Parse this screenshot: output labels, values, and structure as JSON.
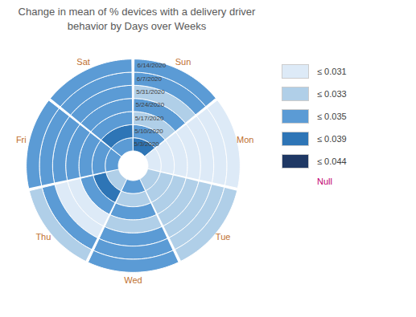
{
  "chart_data": {
    "type": "radial_heatmap",
    "title": "Change in mean of % devices with a delivery driver\nbehavior by Days over Weeks",
    "categories": [
      "Sun",
      "Mon",
      "Tue",
      "Wed",
      "Thu",
      "Fri",
      "Sat"
    ],
    "weeks": [
      "5/3/2020",
      "5/10/2020",
      "5/17/2020",
      "5/24/2020",
      "5/31/2020",
      "6/7/2020",
      "6/14/2020"
    ],
    "cells": [
      [
        "≤ 0.039",
        "≤ 0.035",
        "≤ 0.033",
        "≤ 0.035",
        "≤ 0.033",
        "≤ 0.035",
        "≤ 0.035"
      ],
      [
        "≤ 0.031",
        "≤ 0.031",
        "≤ 0.031",
        "≤ 0.031",
        "≤ 0.031",
        "≤ 0.031",
        "≤ 0.031"
      ],
      [
        "≤ 0.033",
        "≤ 0.033",
        "≤ 0.033",
        "≤ 0.033",
        "≤ 0.033",
        "≤ 0.033",
        "≤ 0.033"
      ],
      [
        "≤ 0.035",
        "≤ 0.033",
        "≤ 0.035",
        "≤ 0.033",
        "≤ 0.035",
        "≤ 0.035",
        "≤ 0.035"
      ],
      [
        "≤ 0.033",
        "≤ 0.039",
        "≤ 0.035",
        "≤ 0.031",
        "≤ 0.031",
        "≤ 0.035",
        "≤ 0.033"
      ],
      [
        "≤ 0.035",
        "≤ 0.035",
        "≤ 0.035",
        "≤ 0.035",
        "≤ 0.035",
        "≤ 0.035",
        "≤ 0.035"
      ],
      [
        "≤ 0.035",
        "≤ 0.039",
        "≤ 0.035",
        "≤ 0.035",
        "≤ 0.035",
        "≤ 0.035",
        "≤ 0.035"
      ]
    ],
    "bins": [
      {
        "label": "≤ 0.031",
        "color": "#ddeaf7"
      },
      {
        "label": "≤ 0.033",
        "color": "#b0cfe8"
      },
      {
        "label": "≤ 0.035",
        "color": "#5b9bd5"
      },
      {
        "label": "≤ 0.039",
        "color": "#2e75b6"
      },
      {
        "label": "≤ 0.044",
        "color": "#1f3864"
      }
    ],
    "null_label": "Null",
    "null_color": "#c00070"
  }
}
